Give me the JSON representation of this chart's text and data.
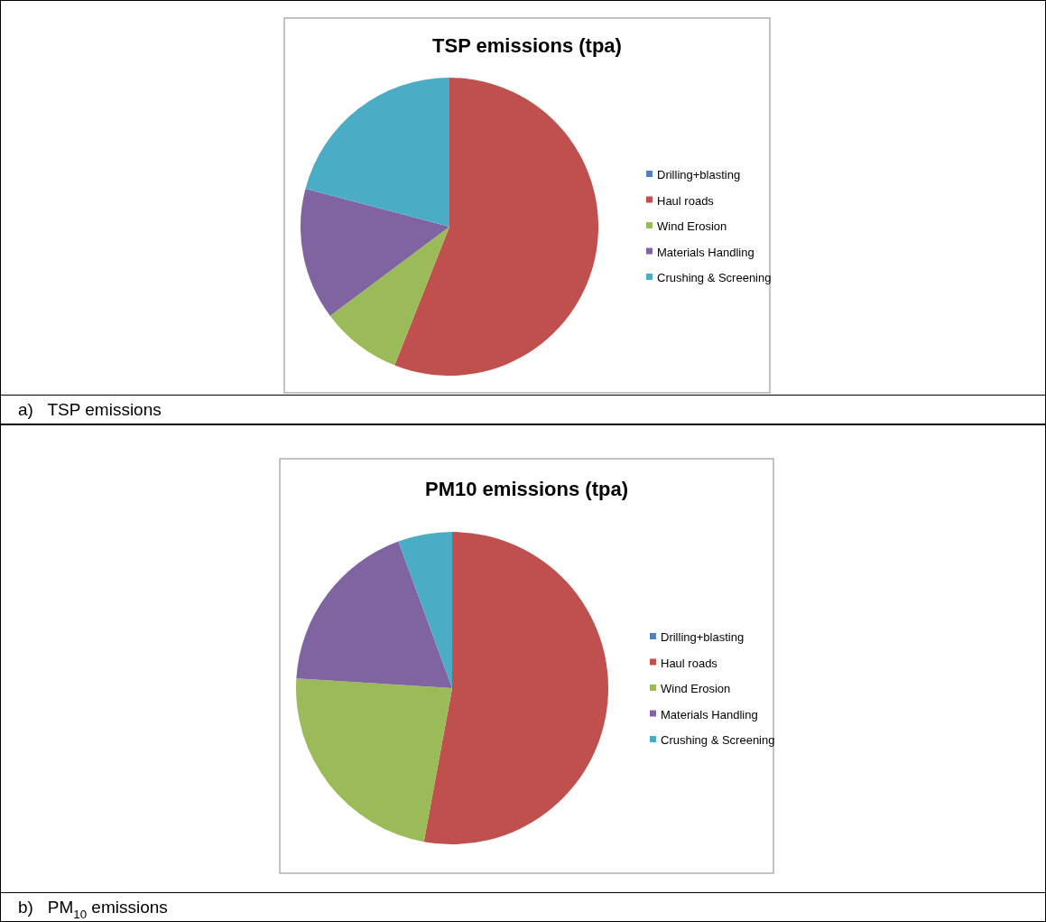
{
  "chart_data": [
    {
      "type": "pie",
      "title": "TSP emissions (tpa)",
      "categories": [
        "Drilling+blasting",
        "Haul roads",
        "Wind Erosion",
        "Materials Handling",
        "Crushing & Screening"
      ],
      "values": [
        0,
        56,
        8.8,
        14.3,
        20.9
      ],
      "colors": [
        "#4f81bd",
        "#c0504d",
        "#9bbb59",
        "#8064a2",
        "#4bacc6"
      ],
      "legend": "right",
      "annotations": [
        "a)   TSP emissions"
      ]
    },
    {
      "type": "pie",
      "title": "PM10 emissions (tpa)",
      "categories": [
        "Drilling+blasting",
        "Haul roads",
        "Wind Erosion",
        "Materials Handling",
        "Crushing & Screening"
      ],
      "values": [
        0,
        52.9,
        23.1,
        18.4,
        5.6
      ],
      "colors": [
        "#4f81bd",
        "#c0504d",
        "#9bbb59",
        "#8064a2",
        "#4bacc6"
      ],
      "legend": "right",
      "annotations": [
        "b)   PM$_{10}$ emissions"
      ]
    }
  ]
}
